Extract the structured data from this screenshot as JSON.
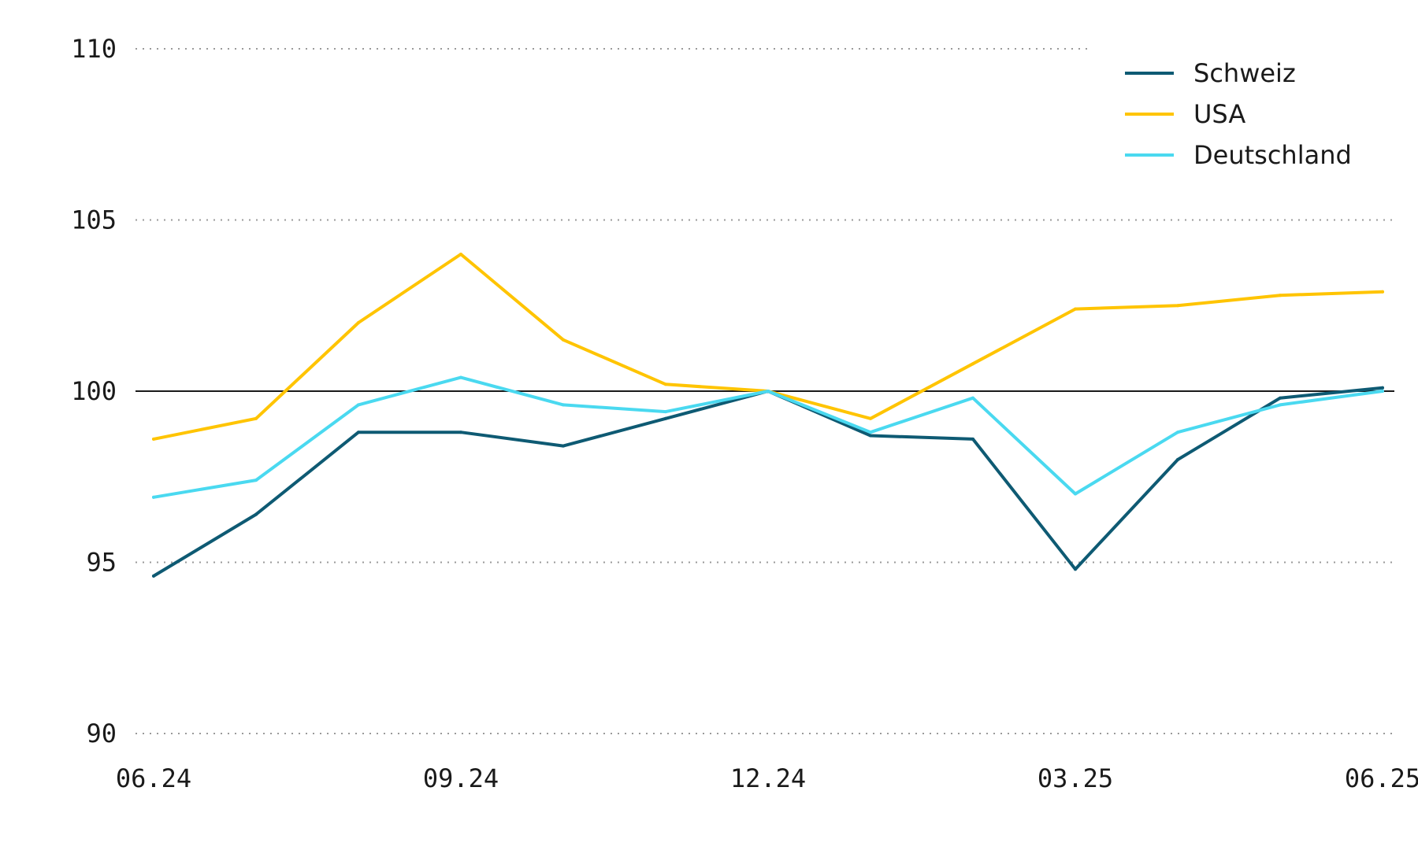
{
  "chart_data": {
    "type": "line",
    "title": "",
    "xlabel": "",
    "ylabel": "",
    "x_tick_labels": [
      "06.24",
      "09.24",
      "12.24",
      "03.25",
      "06.25"
    ],
    "y_ticks": [
      90,
      95,
      100,
      105,
      110
    ],
    "ylim": [
      90,
      110
    ],
    "grid": "horizontal dotted",
    "reference_line": 100,
    "legend_position": "top-right",
    "series": [
      {
        "name": "Schweiz",
        "color": "#0e5a73",
        "points": [
          [
            "06.24",
            94.6
          ],
          [
            "07.24",
            96.4
          ],
          [
            "08.24",
            98.8
          ],
          [
            "09.24",
            98.8
          ],
          [
            "10.24",
            98.4
          ],
          [
            "11.24",
            99.2
          ],
          [
            "12.24",
            100.0
          ],
          [
            "01.25",
            98.7
          ],
          [
            "02.25",
            98.6
          ],
          [
            "03.25",
            94.8
          ],
          [
            "04.25",
            98.0
          ],
          [
            "05.25",
            99.8
          ],
          [
            "06.25",
            100.1
          ]
        ]
      },
      {
        "name": "USA",
        "color": "#ffc400",
        "points": [
          [
            "06.24",
            98.6
          ],
          [
            "07.24",
            99.2
          ],
          [
            "08.24",
            102.0
          ],
          [
            "09.24",
            104.0
          ],
          [
            "10.24",
            101.5
          ],
          [
            "11.24",
            100.2
          ],
          [
            "12.24",
            100.0
          ],
          [
            "01.25",
            99.2
          ],
          [
            "02.25",
            100.8
          ],
          [
            "03.25",
            102.4
          ],
          [
            "04.25",
            102.5
          ],
          [
            "05.25",
            102.8
          ],
          [
            "06.25",
            102.9
          ]
        ]
      },
      {
        "name": "Deutschland",
        "color": "#4ad9f0",
        "points": [
          [
            "06.24",
            96.9
          ],
          [
            "07.24",
            97.4
          ],
          [
            "08.24",
            99.6
          ],
          [
            "09.24",
            100.4
          ],
          [
            "10.24",
            99.6
          ],
          [
            "11.24",
            99.4
          ],
          [
            "12.24",
            100.0
          ],
          [
            "01.25",
            98.8
          ],
          [
            "02.25",
            99.8
          ],
          [
            "03.25",
            97.0
          ],
          [
            "04.25",
            98.8
          ],
          [
            "05.25",
            99.6
          ],
          [
            "06.25",
            100.0
          ]
        ]
      }
    ]
  }
}
